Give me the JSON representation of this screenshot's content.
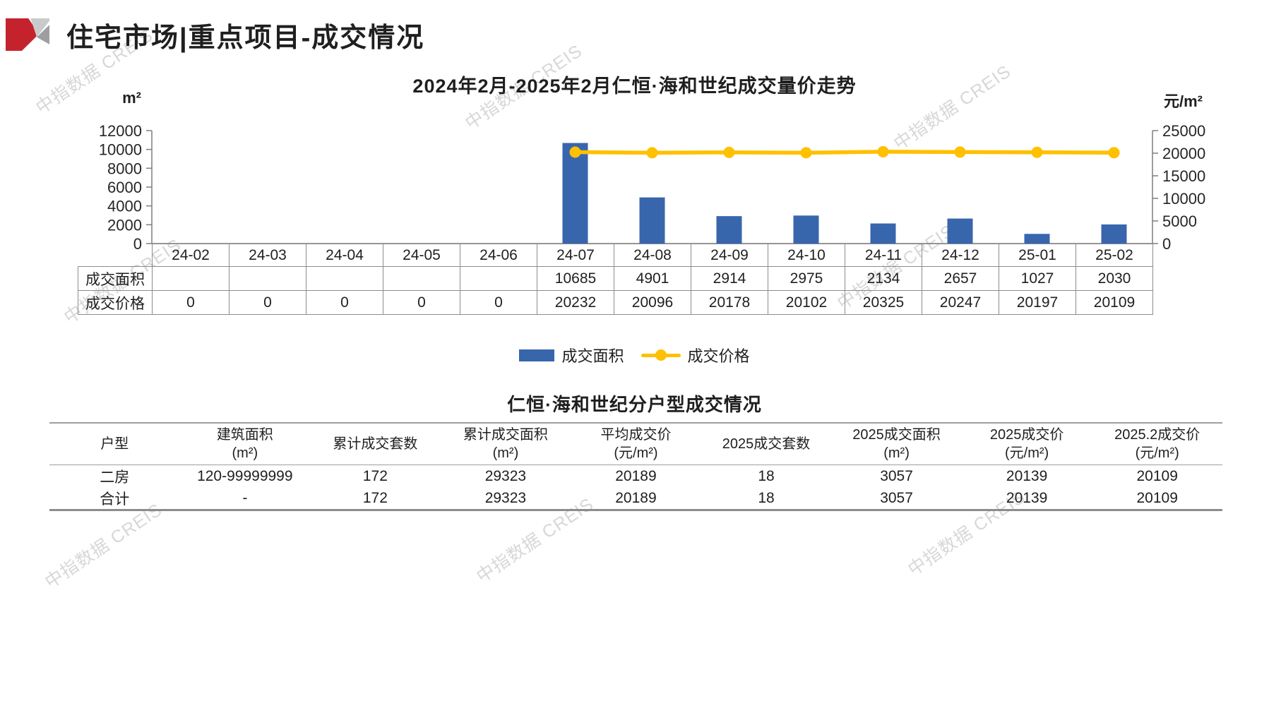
{
  "page": {
    "title": "住宅市场|重点项目-成交情况"
  },
  "watermark": {
    "text": "中指数据 CREIS"
  },
  "chart": {
    "title": "2024年2月-2025年2月仁恒·海和世纪成交量价走势",
    "left_axis_unit": "m²",
    "right_axis_unit": "元/m²"
  },
  "chart_data": {
    "type": "bar",
    "title": "2024年2月-2025年2月仁恒·海和世纪成交量价走势",
    "categories": [
      "24-02",
      "24-03",
      "24-04",
      "24-05",
      "24-06",
      "24-07",
      "24-08",
      "24-09",
      "24-10",
      "24-11",
      "24-12",
      "25-01",
      "25-02"
    ],
    "series": [
      {
        "name": "成交面积",
        "type": "bar",
        "axis": "left",
        "values": [
          null,
          null,
          null,
          null,
          null,
          10685,
          4901,
          2914,
          2975,
          2134,
          2657,
          1027,
          2030
        ]
      },
      {
        "name": "成交价格",
        "type": "line",
        "axis": "right",
        "values": [
          0,
          0,
          0,
          0,
          0,
          20232,
          20096,
          20178,
          20102,
          20325,
          20247,
          20197,
          20109
        ]
      }
    ],
    "left_axis": {
      "label": "m²",
      "range": [
        0,
        12000
      ],
      "ticks": [
        0,
        2000,
        4000,
        6000,
        8000,
        10000,
        12000
      ]
    },
    "right_axis": {
      "label": "元/m²",
      "range": [
        0,
        25000
      ],
      "ticks": [
        0,
        5000,
        10000,
        15000,
        20000,
        25000
      ]
    },
    "grid": false,
    "legend_position": "bottom"
  },
  "chart_table": {
    "row_labels": [
      "成交面积",
      "成交价格"
    ],
    "rows": [
      [
        "",
        "",
        "",
        "",
        "",
        "10685",
        "4901",
        "2914",
        "2975",
        "2134",
        "2657",
        "1027",
        "2030"
      ],
      [
        "0",
        "0",
        "0",
        "0",
        "0",
        "20232",
        "20096",
        "20178",
        "20102",
        "20325",
        "20247",
        "20197",
        "20109"
      ]
    ]
  },
  "legend": {
    "bar_label": "成交面积",
    "line_label": "成交价格"
  },
  "breakdown": {
    "title": "仁恒·海和世纪分户型成交情况",
    "headers": [
      {
        "l1": "户型",
        "l2": ""
      },
      {
        "l1": "建筑面积",
        "l2": "(m²)"
      },
      {
        "l1": "累计成交套数",
        "l2": ""
      },
      {
        "l1": "累计成交面积",
        "l2": "(m²)"
      },
      {
        "l1": "平均成交价",
        "l2": "(元/m²)"
      },
      {
        "l1": "2025成交套数",
        "l2": ""
      },
      {
        "l1": "2025成交面积",
        "l2": "(m²)"
      },
      {
        "l1": "2025成交价",
        "l2": "(元/m²)"
      },
      {
        "l1": "2025.2成交价",
        "l2": "(元/m²)"
      }
    ],
    "rows": [
      [
        "二房",
        "120-99999999",
        "172",
        "29323",
        "20189",
        "18",
        "3057",
        "20139",
        "20109"
      ],
      [
        "合计",
        "-",
        "172",
        "29323",
        "20189",
        "18",
        "3057",
        "20139",
        "20109"
      ]
    ]
  },
  "colors": {
    "bar": "#3866AD",
    "line": "#FFC000",
    "axis": "#7f7f7f",
    "tick_text": "#262626",
    "watermark": "#c9c9c9",
    "logo_red": "#c4232e"
  }
}
